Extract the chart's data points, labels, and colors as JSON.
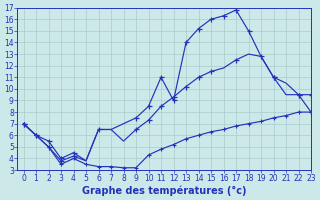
{
  "title": "Graphe des températures (°c)",
  "bg_color": "#cce8e8",
  "grid_color": "#aacccc",
  "line_color": "#2233bb",
  "xlim": [
    -0.5,
    23
  ],
  "ylim": [
    3,
    17
  ],
  "xticks": [
    0,
    1,
    2,
    3,
    4,
    5,
    6,
    7,
    8,
    9,
    10,
    11,
    12,
    13,
    14,
    15,
    16,
    17,
    18,
    19,
    20,
    21,
    22,
    23
  ],
  "yticks": [
    3,
    4,
    5,
    6,
    7,
    8,
    9,
    10,
    11,
    12,
    13,
    14,
    15,
    16,
    17
  ],
  "series1_x": [
    0,
    1,
    2,
    3,
    4,
    5,
    6,
    7,
    8,
    9,
    10,
    11,
    12,
    13,
    14,
    15,
    16,
    17,
    18,
    19,
    20,
    21,
    22,
    23
  ],
  "series1_y": [
    7.0,
    6.0,
    5.0,
    3.5,
    4.0,
    3.5,
    3.3,
    3.3,
    3.2,
    3.2,
    4.3,
    4.8,
    5.2,
    5.7,
    6.0,
    6.3,
    6.5,
    6.8,
    7.0,
    7.2,
    7.5,
    7.7,
    8.0,
    8.0
  ],
  "series2_x": [
    0,
    1,
    2,
    3,
    4,
    5,
    6,
    7,
    8,
    9,
    10,
    11,
    12,
    13,
    14,
    15,
    16,
    17,
    18,
    19,
    20,
    21,
    22,
    23
  ],
  "series2_y": [
    7.0,
    6.0,
    5.0,
    3.8,
    4.2,
    3.8,
    6.5,
    6.5,
    7.0,
    7.5,
    8.5,
    11.0,
    9.0,
    14.0,
    15.2,
    16.0,
    16.3,
    16.8,
    15.0,
    12.8,
    11.0,
    9.5,
    9.5,
    9.5
  ],
  "series2_markers_x": [
    0,
    1,
    2,
    3,
    4,
    9,
    10,
    11,
    12,
    13,
    14,
    15,
    16,
    17,
    18,
    20,
    22,
    23
  ],
  "series2_markers_y": [
    7.0,
    6.0,
    5.0,
    3.8,
    4.2,
    7.5,
    8.5,
    11.0,
    9.0,
    14.0,
    15.2,
    16.0,
    16.3,
    16.8,
    15.0,
    11.0,
    9.5,
    9.5
  ],
  "series3_x": [
    0,
    1,
    2,
    3,
    4,
    5,
    6,
    7,
    8,
    9,
    10,
    11,
    12,
    13,
    14,
    15,
    16,
    17,
    18,
    19,
    20,
    21,
    22,
    23
  ],
  "series3_y": [
    7.0,
    6.0,
    5.5,
    4.0,
    4.5,
    3.8,
    6.5,
    6.5,
    5.5,
    6.5,
    7.3,
    8.5,
    9.3,
    10.2,
    11.0,
    11.5,
    11.8,
    12.5,
    13.0,
    12.8,
    11.0,
    10.5,
    9.5,
    8.0
  ],
  "series3_markers_x": [
    0,
    1,
    2,
    3,
    4,
    6,
    9,
    10,
    11,
    12,
    13,
    14,
    15,
    17,
    19,
    20,
    22,
    23
  ],
  "series3_markers_y": [
    7.0,
    6.0,
    5.5,
    4.0,
    4.5,
    6.5,
    6.5,
    7.3,
    8.5,
    9.3,
    10.2,
    11.0,
    11.5,
    12.5,
    12.8,
    11.0,
    9.5,
    8.0
  ],
  "tick_fontsize": 5.5,
  "xlabel_fontsize": 7
}
